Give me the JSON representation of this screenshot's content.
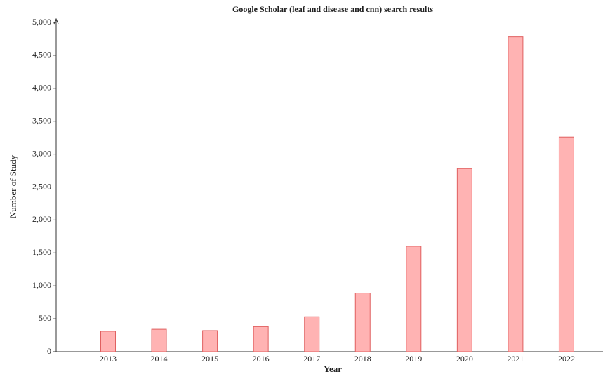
{
  "chart_data": {
    "type": "bar",
    "title": "Google Scholar (leaf and disease and cnn) search results",
    "x_label": "Year",
    "y_label": "Number of Study",
    "categories": [
      "2013",
      "2014",
      "2015",
      "2016",
      "2017",
      "2018",
      "2019",
      "2020",
      "2021",
      "2022"
    ],
    "values": [
      310,
      340,
      320,
      380,
      530,
      890,
      1600,
      2780,
      4780,
      3260
    ],
    "color": "#ffb3b3",
    "edge_color": "#e06060",
    "ylim": [
      0,
      5000
    ],
    "yticks": [
      0,
      500,
      {
        "value": 1000,
        "label": "1,000"
      },
      {
        "value": 1500,
        "label": "1,500"
      },
      {
        "value": 2000,
        "label": "2,000"
      },
      {
        "value": 2500,
        "label": "2,500"
      },
      {
        "value": 3000,
        "label": "3,000"
      },
      {
        "value": 3500,
        "label": "3,500"
      },
      {
        "value": 4000,
        "label": "4,000"
      },
      {
        "value": 4500,
        "label": "4,500"
      },
      {
        "value": 5000,
        "label": "5,000"
      }
    ],
    "grid": false
  }
}
